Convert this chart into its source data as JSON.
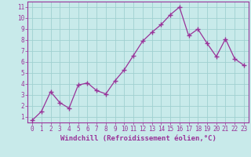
{
  "x": [
    0,
    1,
    2,
    3,
    4,
    5,
    6,
    7,
    8,
    9,
    10,
    11,
    12,
    13,
    14,
    15,
    16,
    17,
    18,
    19,
    20,
    21,
    22,
    23
  ],
  "y": [
    0.7,
    1.5,
    3.3,
    2.3,
    1.8,
    3.9,
    4.1,
    3.4,
    3.1,
    4.3,
    5.3,
    6.6,
    7.9,
    8.7,
    9.4,
    10.3,
    11.0,
    8.4,
    9.0,
    7.7,
    6.5,
    8.1,
    6.3,
    5.7
  ],
  "line_color": "#993399",
  "marker": "+",
  "marker_size": 4,
  "bg_color": "#c8eaea",
  "grid_color": "#a0d0d0",
  "xlabel": "Windchill (Refroidissement éolien,°C)",
  "xlim": [
    -0.5,
    23.5
  ],
  "ylim": [
    0.5,
    11.5
  ],
  "yticks": [
    1,
    2,
    3,
    4,
    5,
    6,
    7,
    8,
    9,
    10,
    11
  ],
  "xticks": [
    0,
    1,
    2,
    3,
    4,
    5,
    6,
    7,
    8,
    9,
    10,
    11,
    12,
    13,
    14,
    15,
    16,
    17,
    18,
    19,
    20,
    21,
    22,
    23
  ],
  "tick_label_fontsize": 5.5,
  "xlabel_fontsize": 6.5,
  "spine_color": "#993399",
  "axis_bg_color": "#c8eaea"
}
